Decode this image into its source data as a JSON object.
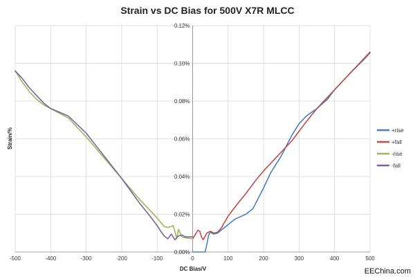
{
  "chart_data": {
    "type": "line",
    "title": "Strain vs DC Bias for 500V X7R MLCC",
    "xlabel": "DC Bias/V",
    "ylabel": "Strain/%",
    "xlim": [
      -500,
      500
    ],
    "ylim": [
      0,
      0.12
    ],
    "x_ticks": [
      "-500",
      "-400",
      "-300",
      "-200",
      "-100",
      "0",
      "100",
      "200",
      "300",
      "400",
      "500"
    ],
    "y_ticks": [
      "0.00%",
      "0.02%",
      "0.04%",
      "0.06%",
      "0.08%",
      "0.10%",
      "0.12%"
    ],
    "grid": true,
    "legend_position": "right",
    "series": [
      {
        "name": "+rise",
        "color": "#4a7ebb",
        "x": [
          0,
          30,
          35,
          40,
          45,
          50,
          60,
          70,
          80,
          100,
          120,
          150,
          170,
          200,
          220,
          250,
          280,
          300,
          320,
          350,
          380,
          400,
          420,
          450,
          480,
          500
        ],
        "y": [
          0.0,
          0.0,
          0.0,
          0.004,
          0.009,
          0.0105,
          0.0095,
          0.01,
          0.0115,
          0.0145,
          0.0175,
          0.02,
          0.023,
          0.034,
          0.042,
          0.051,
          0.062,
          0.068,
          0.072,
          0.076,
          0.081,
          0.086,
          0.09,
          0.096,
          0.1015,
          0.1055
        ]
      },
      {
        "name": "+fall",
        "color": "#be4b48",
        "x": [
          0,
          10,
          15,
          20,
          25,
          30,
          40,
          50,
          60,
          70,
          80,
          100,
          120,
          150,
          180,
          200,
          220,
          250,
          280,
          300,
          320,
          350,
          400,
          450,
          500
        ],
        "y": [
          0.007,
          0.01,
          0.0115,
          0.011,
          0.008,
          0.0065,
          0.01,
          0.011,
          0.01,
          0.0105,
          0.0125,
          0.019,
          0.024,
          0.031,
          0.0385,
          0.043,
          0.047,
          0.053,
          0.059,
          0.064,
          0.069,
          0.076,
          0.086,
          0.096,
          0.106
        ]
      },
      {
        "name": "-rise",
        "color": "#98b954",
        "x": [
          -500,
          -480,
          -460,
          -440,
          -420,
          -400,
          -380,
          -350,
          -300,
          -250,
          -200,
          -150,
          -100,
          -80,
          -70,
          -60,
          -55,
          -50,
          -45,
          -40,
          -35,
          -30,
          -20,
          0
        ],
        "y": [
          0.096,
          0.09,
          0.085,
          0.081,
          0.078,
          0.076,
          0.074,
          0.071,
          0.061,
          0.05,
          0.039,
          0.028,
          0.018,
          0.0135,
          0.013,
          0.0135,
          0.014,
          0.011,
          0.007,
          0.012,
          0.01,
          0.008,
          0.0075,
          0.007
        ]
      },
      {
        "name": "-fall",
        "color": "#7d60a0",
        "x": [
          -500,
          -480,
          -460,
          -440,
          -420,
          -400,
          -380,
          -350,
          -300,
          -250,
          -200,
          -150,
          -120,
          -100,
          -90,
          -80,
          -70,
          -60,
          -50,
          -40,
          -30,
          -20,
          0
        ],
        "y": [
          0.096,
          0.092,
          0.087,
          0.083,
          0.079,
          0.076,
          0.0745,
          0.072,
          0.063,
          0.051,
          0.039,
          0.026,
          0.019,
          0.014,
          0.011,
          0.0085,
          0.007,
          0.0095,
          0.0065,
          0.0085,
          0.009,
          0.008,
          0.008
        ]
      }
    ]
  },
  "watermark": "EEChina.com"
}
